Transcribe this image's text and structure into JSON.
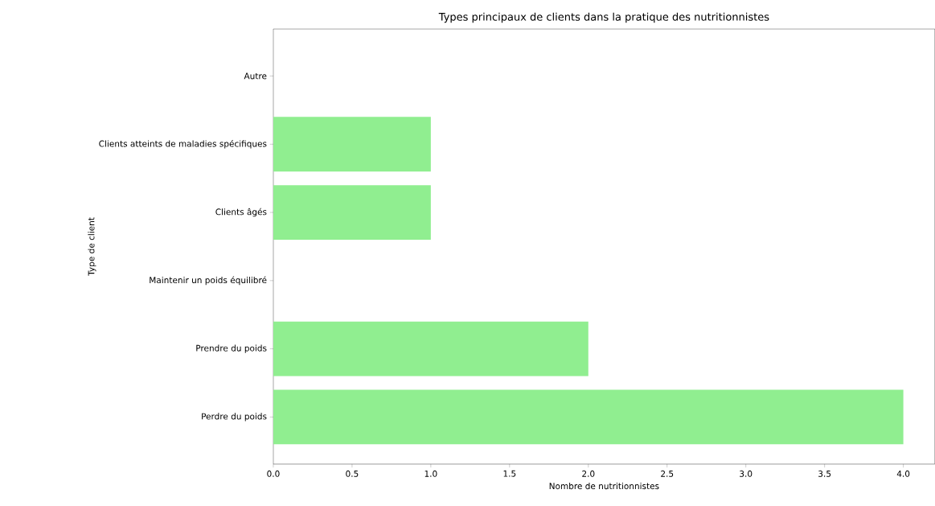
{
  "chart_data": {
    "type": "bar",
    "orientation": "horizontal",
    "title": "Types principaux de clients dans la pratique des nutritionnistes",
    "xlabel": "Nombre de nutritionnistes",
    "ylabel": "Type de client",
    "categories": [
      "Autre",
      "Clients atteints de maladies spécifiques",
      "Clients âgés",
      "Maintenir un poids équilibré",
      "Prendre du poids",
      "Perdre du poids"
    ],
    "values": [
      0,
      1,
      1,
      0,
      2,
      4
    ],
    "color": "#90ee90",
    "xlim": [
      0,
      4.2
    ],
    "xticks": [
      {
        "value": 0,
        "label": "0.0"
      },
      {
        "value": 0.5,
        "label": "0.5"
      },
      {
        "value": 1,
        "label": "1.0"
      },
      {
        "value": 1.5,
        "label": "1.5"
      },
      {
        "value": 2,
        "label": "2.0"
      },
      {
        "value": 2.5,
        "label": "2.5"
      },
      {
        "value": 3,
        "label": "3.0"
      },
      {
        "value": 3.5,
        "label": "3.5"
      },
      {
        "value": 4,
        "label": "4.0"
      }
    ]
  }
}
